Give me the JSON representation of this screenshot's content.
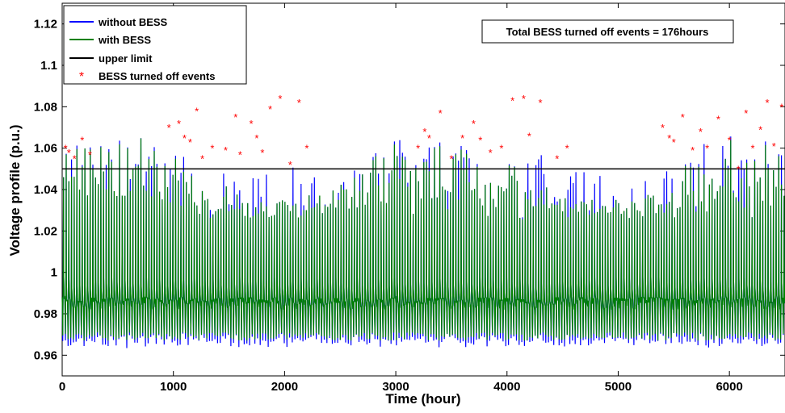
{
  "chart_data": {
    "type": "line",
    "xlabel": "Time (hour)",
    "ylabel": "Voltage profile (p.u.)",
    "xlim": [
      0,
      6500
    ],
    "ylim": [
      0.95,
      1.13
    ],
    "xticks": [
      0,
      1000,
      2000,
      3000,
      4000,
      5000,
      6000
    ],
    "yticks": [
      0.96,
      0.98,
      1,
      1.02,
      1.04,
      1.06,
      1.08,
      1.1,
      1.12
    ],
    "xtick_labels": [
      "0",
      "1000",
      "2000",
      "3000",
      "4000",
      "5000",
      "6000"
    ],
    "ytick_labels": [
      "0.96",
      "0.98",
      "1",
      "1.02",
      "1.04",
      "1.06",
      "1.08",
      "1.1",
      "1.12"
    ],
    "grid": false,
    "legend_position": "top-left",
    "annotation": "Total BESS turned off events = 176hours",
    "series": [
      {
        "name": "without BESS",
        "color": "#0000ff",
        "style": "line",
        "min": 0.967,
        "max": 1.085
      },
      {
        "name": "with BESS",
        "color": "#008000",
        "style": "line",
        "min": 0.967,
        "max": 1.085
      },
      {
        "name": "upper limit",
        "color": "#000000",
        "style": "line",
        "values": [
          [
            0,
            1.05
          ],
          [
            6500,
            1.05
          ]
        ]
      },
      {
        "name": "BESS turned off events",
        "color": "#ff0000",
        "style": "marker",
        "marker": "*",
        "count": 176,
        "points": [
          [
            30,
            1.06
          ],
          [
            60,
            1.058
          ],
          [
            110,
            1.055
          ],
          [
            180,
            1.064
          ],
          [
            250,
            1.057
          ],
          [
            960,
            1.07
          ],
          [
            1050,
            1.072
          ],
          [
            1100,
            1.065
          ],
          [
            1150,
            1.063
          ],
          [
            1210,
            1.078
          ],
          [
            1260,
            1.055
          ],
          [
            1350,
            1.06
          ],
          [
            1470,
            1.059
          ],
          [
            1560,
            1.075
          ],
          [
            1600,
            1.057
          ],
          [
            1700,
            1.072
          ],
          [
            1750,
            1.065
          ],
          [
            1800,
            1.058
          ],
          [
            1870,
            1.079
          ],
          [
            1960,
            1.084
          ],
          [
            2050,
            1.052
          ],
          [
            2130,
            1.082
          ],
          [
            2200,
            1.06
          ],
          [
            3200,
            1.06
          ],
          [
            3260,
            1.068
          ],
          [
            3300,
            1.065
          ],
          [
            3400,
            1.077
          ],
          [
            3500,
            1.055
          ],
          [
            3600,
            1.065
          ],
          [
            3700,
            1.072
          ],
          [
            3760,
            1.064
          ],
          [
            3850,
            1.058
          ],
          [
            3950,
            1.06
          ],
          [
            4050,
            1.083
          ],
          [
            4150,
            1.084
          ],
          [
            4200,
            1.066
          ],
          [
            4300,
            1.082
          ],
          [
            4450,
            1.055
          ],
          [
            4540,
            1.06
          ],
          [
            5400,
            1.07
          ],
          [
            5460,
            1.065
          ],
          [
            5500,
            1.063
          ],
          [
            5580,
            1.075
          ],
          [
            5670,
            1.059
          ],
          [
            5740,
            1.068
          ],
          [
            5800,
            1.06
          ],
          [
            5900,
            1.074
          ],
          [
            6000,
            1.064
          ],
          [
            6080,
            1.05
          ],
          [
            6150,
            1.077
          ],
          [
            6210,
            1.06
          ],
          [
            6280,
            1.069
          ],
          [
            6340,
            1.082
          ],
          [
            6400,
            1.061
          ],
          [
            6470,
            1.08
          ]
        ]
      }
    ]
  }
}
